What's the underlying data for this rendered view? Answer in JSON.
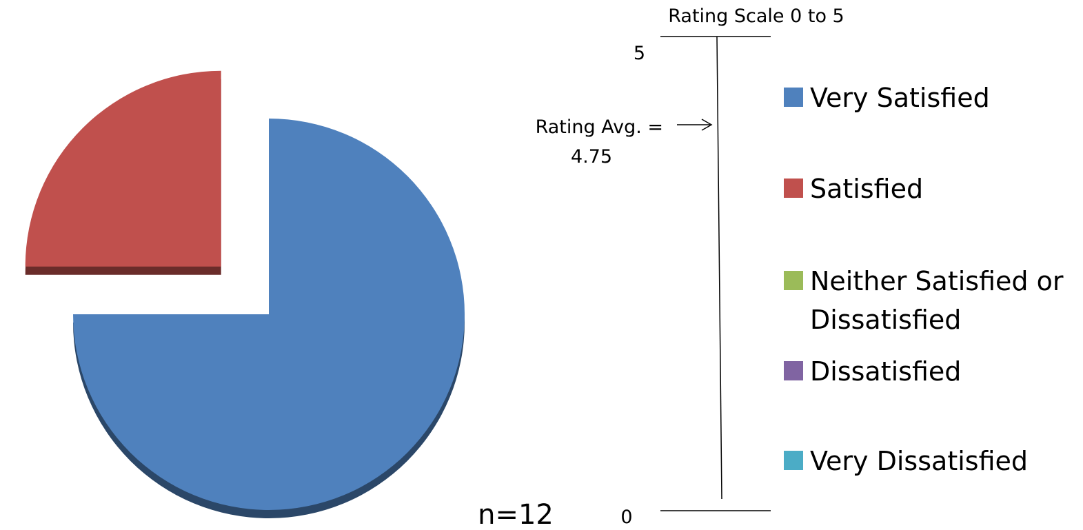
{
  "chart_data": {
    "type": "pie",
    "categories": [
      "Very Satisfied",
      "Satisfied",
      "Neither Satisfied or Dissatisfied",
      "Dissatisfied",
      "Very Dissatisfied"
    ],
    "values": [
      9,
      3,
      0,
      0,
      0
    ],
    "colors": [
      "#4F81BD",
      "#C0504D",
      "#9BBB59",
      "#8064A2",
      "#4BACC6"
    ],
    "exploded": true,
    "style": "3d",
    "legend_position": "right",
    "sample_size_label": "n=12",
    "rating_scale": {
      "title": "Rating Scale 0 to 5",
      "max_label": "5",
      "min_label": "0",
      "min": 0,
      "max": 5,
      "average": 4.75,
      "average_label_line1": "Rating Avg. =",
      "average_label_line2": "4.75"
    }
  }
}
